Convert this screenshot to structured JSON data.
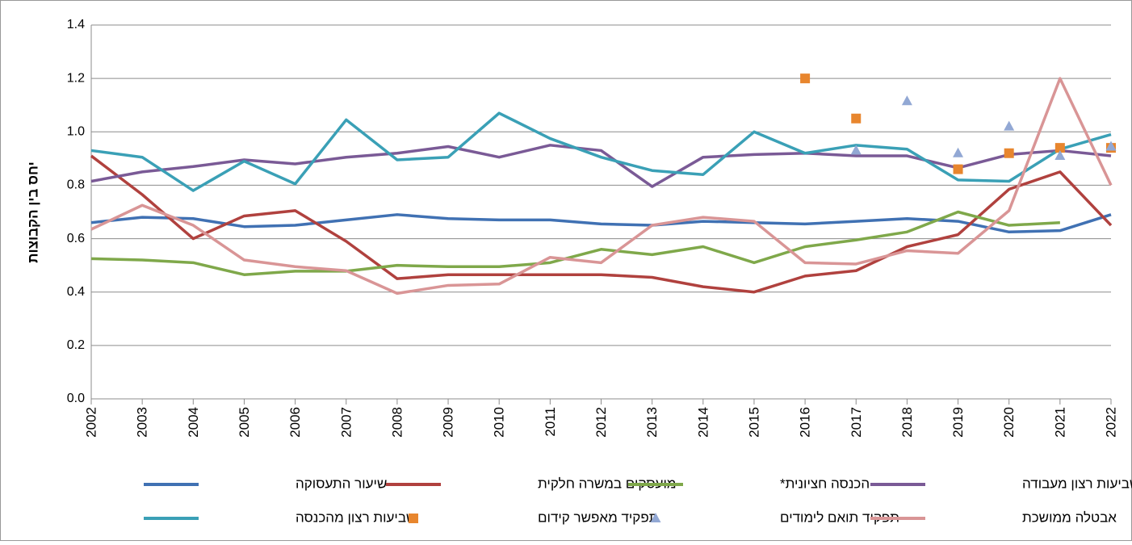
{
  "chart_data": {
    "type": "line",
    "y_label": "יחס בין הקבוצות",
    "categories": [
      "2002",
      "2003",
      "2004",
      "2005",
      "2006",
      "2007",
      "2008",
      "2009",
      "2010",
      "2011",
      "2012",
      "2013",
      "2014",
      "2015",
      "2016",
      "2017",
      "2018",
      "2019",
      "2020",
      "2021",
      "2022"
    ],
    "ylim": [
      0,
      1.4
    ],
    "yticks": [
      {
        "value": 0,
        "label": "0.0"
      },
      0.2,
      0.4,
      0.6,
      0.8,
      {
        "value": 1,
        "label": "1.0"
      },
      1.2,
      1.4
    ],
    "grid": true,
    "series": [
      {
        "name": "שיעור התעסוקה",
        "color": "#4071b3",
        "style": "line",
        "values": [
          0.66,
          0.68,
          0.675,
          0.645,
          0.65,
          0.67,
          0.69,
          0.675,
          0.67,
          0.67,
          0.655,
          0.65,
          0.665,
          0.66,
          0.655,
          0.665,
          0.675,
          0.665,
          0.625,
          0.63,
          0.69
        ]
      },
      {
        "name": "מועסקים במשרה חלקית",
        "color": "#b0413e",
        "style": "line",
        "values": [
          0.91,
          0.765,
          0.6,
          0.685,
          0.705,
          0.59,
          0.45,
          0.465,
          0.465,
          0.465,
          0.465,
          0.455,
          0.42,
          0.4,
          0.46,
          0.48,
          0.57,
          0.615,
          0.785,
          0.85,
          0.65
        ]
      },
      {
        "name": "הכנסה חציונית*",
        "color": "#7fa84a",
        "style": "line",
        "values": [
          0.525,
          0.52,
          0.51,
          0.465,
          0.478,
          0.478,
          0.5,
          0.495,
          0.495,
          0.51,
          0.56,
          0.54,
          0.57,
          0.51,
          0.57,
          0.595,
          0.625,
          0.7,
          0.65,
          0.66,
          null
        ]
      },
      {
        "name": "שביעות רצון מעבודה",
        "color": "#7a5a96",
        "style": "line",
        "values": [
          0.815,
          0.85,
          0.87,
          0.895,
          0.88,
          0.905,
          0.92,
          0.945,
          0.905,
          0.95,
          0.93,
          0.795,
          0.905,
          0.915,
          0.92,
          0.91,
          0.91,
          0.865,
          0.915,
          0.93,
          0.91
        ]
      },
      {
        "name": "שביעות רצון מהכנסה",
        "color": "#3aa0b6",
        "style": "line",
        "values": [
          0.93,
          0.905,
          0.78,
          0.89,
          0.805,
          1.045,
          0.895,
          0.905,
          1.07,
          0.975,
          0.905,
          0.855,
          0.84,
          1.0,
          0.92,
          0.95,
          0.935,
          0.82,
          0.815,
          0.935,
          0.99
        ]
      },
      {
        "name": "תפקיד מאפשר קידום",
        "color": "#e8862e",
        "style": "square",
        "values": [
          null,
          null,
          null,
          null,
          null,
          null,
          null,
          null,
          null,
          null,
          null,
          null,
          null,
          null,
          1.2,
          1.05,
          null,
          0.86,
          0.92,
          0.94,
          0.94
        ]
      },
      {
        "name": "תפקיד תואם לימודים",
        "color": "#92a8d4",
        "style": "triangle",
        "values": [
          null,
          null,
          null,
          null,
          null,
          null,
          null,
          null,
          null,
          null,
          null,
          null,
          null,
          null,
          null,
          0.93,
          1.115,
          0.92,
          1.02,
          0.91,
          0.945
        ]
      },
      {
        "name": "אבטלה ממושכת",
        "color": "#d99596",
        "style": "line",
        "values": [
          0.635,
          0.725,
          0.65,
          0.52,
          0.495,
          0.48,
          0.395,
          0.425,
          0.43,
          0.53,
          0.51,
          0.65,
          0.68,
          0.665,
          0.51,
          0.505,
          0.555,
          0.545,
          0.705,
          1.2,
          0.8
        ]
      }
    ]
  }
}
